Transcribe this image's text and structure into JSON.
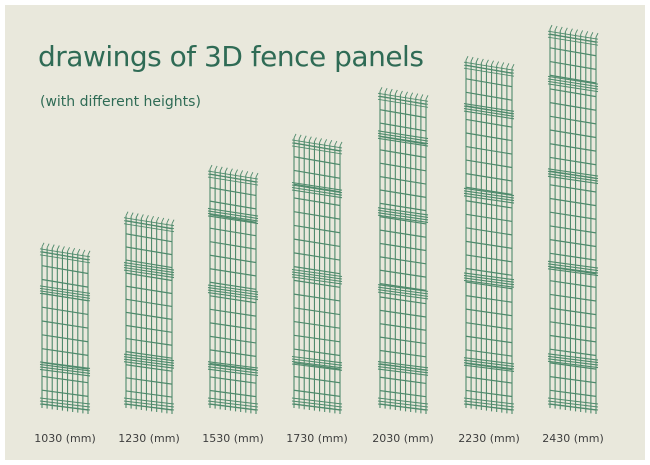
{
  "title": "drawings of 3D fence panels",
  "subtitle": "(with different heights)",
  "colors": {
    "background": "#e9e8dc",
    "title_text": "#2f6b55",
    "wire": "#4f8a6c",
    "label_text": "#3e3e3e"
  },
  "panels": [
    {
      "label": "1030 (mm)",
      "height_mm": 1030,
      "bends": 2
    },
    {
      "label": "1230 (mm)",
      "height_mm": 1230,
      "bends": 2
    },
    {
      "label": "1530 (mm)",
      "height_mm": 1530,
      "bends": 3
    },
    {
      "label": "1730 (mm)",
      "height_mm": 1730,
      "bends": 3
    },
    {
      "label": "2030 (mm)",
      "height_mm": 2030,
      "bends": 4
    },
    {
      "label": "2230 (mm)",
      "height_mm": 2230,
      "bends": 4
    },
    {
      "label": "2430 (mm)",
      "height_mm": 2430,
      "bends": 4
    }
  ]
}
